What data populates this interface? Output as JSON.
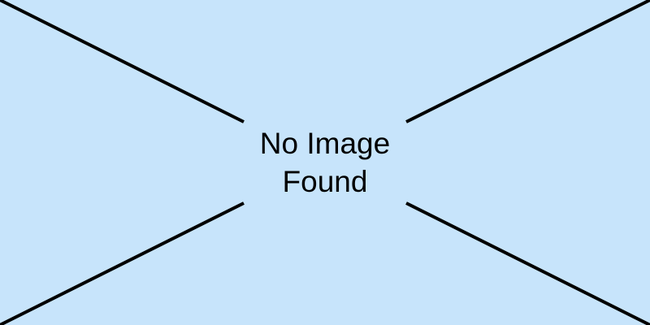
{
  "placeholder": {
    "line1": "No Image",
    "line2": "Found",
    "icon": "broken-image-cross-icon",
    "background_color": "#c7e4fb",
    "line_color": "#000000"
  }
}
